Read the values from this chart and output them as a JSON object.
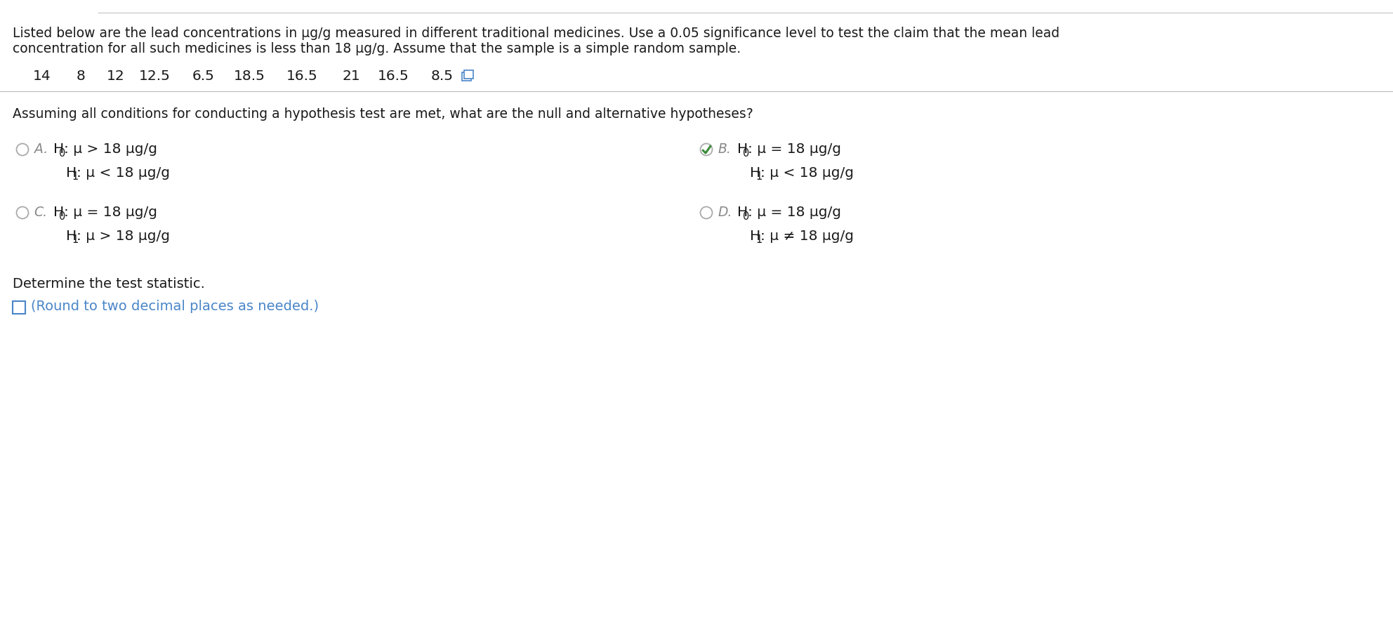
{
  "title_line1": "Listed below are the lead concentrations in μg/g measured in different traditional medicines. Use a 0.05 significance level to test the claim that the mean lead",
  "title_line2": "concentration for all such medicines is less than 18 μg/g. Assume that the sample is a simple random sample.",
  "data_values": [
    "14",
    "8",
    "12",
    "12.5",
    "6.5",
    "18.5",
    "16.5",
    "21",
    "16.5",
    "8.5"
  ],
  "question_text": "Assuming all conditions for conducting a hypothesis test are met, what are the null and alternative hypotheses?",
  "optA_l1": "H",
  "optA_sub1": "0",
  "optA_l1b": ": μ > 18 μg/g",
  "optA_l2": "H",
  "optA_sub2": "1",
  "optA_l2b": ": μ < 18 μg/g",
  "optB_l1": "H",
  "optB_sub1": "0",
  "optB_l1b": ": μ = 18 μg/g",
  "optB_l2": "H",
  "optB_sub2": "1",
  "optB_l2b": ": μ < 18 μg/g",
  "optC_l1": "H",
  "optC_sub1": "0",
  "optC_l1b": ": μ = 18 μg/g",
  "optC_l2": "H",
  "optC_sub2": "1",
  "optC_l2b": ": μ > 18 μg/g",
  "optD_l1": "H",
  "optD_sub1": "0",
  "optD_l1b": ": μ = 18 μg/g",
  "optD_l2": "H",
  "optD_sub2": "1",
  "optD_l2b": ": μ ≠ 18 μg/g",
  "label_A": "A.",
  "label_B": "B.",
  "label_C": "C.",
  "label_D": "D.",
  "determine_text": "Determine the test statistic.",
  "round_text": "(Round to two decimal places as needed.)",
  "bg_color": "#ffffff",
  "text_color": "#1a1a1a",
  "gray_color": "#888888",
  "link_color": "#4a86c8",
  "green_color": "#3a8a3a",
  "separator_color": "#bbbbbb",
  "input_box_color": "#4a86c8",
  "font_size_title": 13.5,
  "font_size_data": 14.5,
  "font_size_question": 13.5,
  "font_size_options": 14.5,
  "font_size_label": 13.5,
  "font_size_determine": 14.0
}
